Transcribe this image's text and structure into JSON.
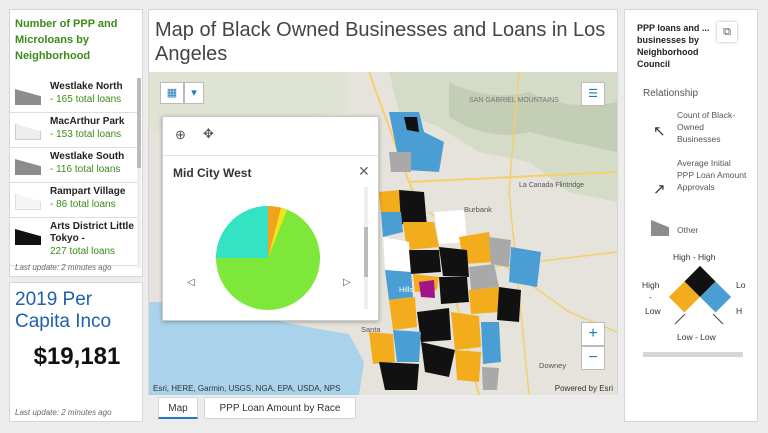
{
  "left_top": {
    "title": "Number of PPP and Microloans by Neighborhood",
    "items": [
      {
        "name": "Westlake North",
        "count": "- 165 total loans",
        "color": "#8c8c8c"
      },
      {
        "name": "MacArthur Park",
        "count": "- 153 total loans",
        "color": "#f0f0f0"
      },
      {
        "name": "Westlake South",
        "count": "- 116 total loans",
        "color": "#8c8c8c"
      },
      {
        "name": "Rampart Village",
        "count": "- 86 total loans",
        "color": "#f5f5f5"
      },
      {
        "name": "Arts District Little Tokyo -",
        "count": "227 total loans",
        "color": "#111111"
      }
    ],
    "last_update": "Last update: 2 minutes ago"
  },
  "left_bottom": {
    "heading": "2019 Per Capita Inco",
    "value": "$19,181",
    "last_update": "Last update: 2 minutes ago"
  },
  "main": {
    "title": "Map of Black Owned Businesses and Loans in Los Angeles",
    "place_labels": [
      "SAN GABRIEL MOUNTAINS",
      "La Canada Flintridge",
      "Burbank",
      "Santa",
      "Downey",
      "Hills"
    ],
    "attribution": "Esri, HERE, Garmin, USGS, NGA, EPA, USDA, NPS",
    "powered_by": "Powered by Esri",
    "popup": {
      "title": "Mid City West",
      "pie_colors": [
        "#7ee83a",
        "#33e3c3",
        "#f3a21b",
        "#f0e41a"
      ]
    },
    "zoom_in": "+",
    "zoom_out": "−"
  },
  "tabs": [
    {
      "label": "Map"
    },
    {
      "label": "PPP Loan Amount by Race"
    }
  ],
  "right": {
    "title": "PPP loans and ... businesses by Neighborhood Council",
    "relationship": "Relationship",
    "legend_1": "Count of Black-Owned Businesses",
    "legend_2": "Average Initial PPP Loan Amount Approvals",
    "other": "Other",
    "high_high": "High - High",
    "high_left": "High",
    "low_left": "Low",
    "low_low": "Low - Low",
    "right_top": "Lo",
    "right_bot": "H",
    "dash": "-",
    "colors": {
      "orange": "#f3ac1c",
      "blue": "#4a9ed4",
      "black": "#111111",
      "white": "#ffffff"
    }
  }
}
